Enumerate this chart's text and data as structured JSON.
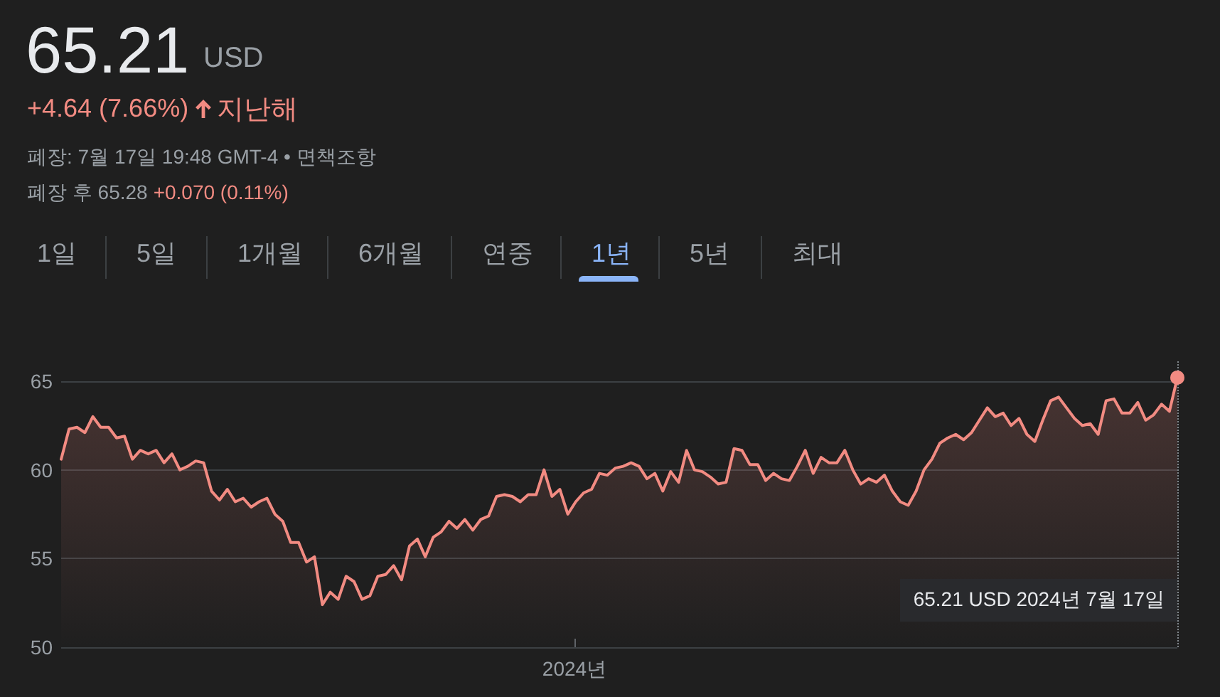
{
  "chart_data": {
    "type": "area",
    "title": "65.21",
    "subtitle": "USD",
    "categories": [
      null,
      null,
      null,
      null,
      null,
      null,
      null,
      null,
      null,
      null,
      null,
      null,
      null,
      null,
      null,
      null,
      null,
      null,
      null,
      null,
      null,
      null,
      null,
      null,
      null,
      null,
      null,
      null,
      null,
      null,
      null,
      null,
      null,
      null,
      null,
      null,
      null,
      null,
      null,
      null,
      null,
      null,
      null,
      null,
      null,
      null,
      null,
      null,
      null,
      null,
      null,
      null,
      null,
      null,
      null,
      null,
      null,
      null,
      null,
      null,
      null,
      null,
      null,
      null,
      null,
      null,
      null,
      null,
      null,
      null,
      null,
      null,
      null,
      null,
      null,
      null,
      null,
      null,
      null,
      null,
      null,
      null,
      null,
      null,
      null,
      null,
      null,
      null,
      null,
      null,
      null,
      null,
      null,
      null,
      null,
      null,
      null,
      null,
      null,
      null,
      null,
      null,
      null,
      null,
      null,
      null,
      null,
      null,
      null,
      null,
      null,
      null,
      null,
      null,
      null,
      null,
      null,
      null,
      null,
      null,
      null,
      null,
      null,
      null,
      null,
      null,
      null,
      null,
      null,
      null,
      null,
      null,
      null,
      null,
      null,
      null,
      null,
      null,
      null,
      null,
      null,
      null
    ],
    "values": [
      60.6,
      62.3,
      62.4,
      62.1,
      63.0,
      62.4,
      62.4,
      61.8,
      61.9,
      60.6,
      61.1,
      60.9,
      61.1,
      60.4,
      60.9,
      60.0,
      60.2,
      60.5,
      60.4,
      58.8,
      58.3,
      58.9,
      58.2,
      58.4,
      57.9,
      58.2,
      58.4,
      57.5,
      57.1,
      55.9,
      55.9,
      54.8,
      55.1,
      52.4,
      53.1,
      52.7,
      54.0,
      53.7,
      52.7,
      52.9,
      54.0,
      54.1,
      54.6,
      53.8,
      55.7,
      56.1,
      55.1,
      56.2,
      56.5,
      57.1,
      56.7,
      57.2,
      56.6,
      57.2,
      57.4,
      58.5,
      58.6,
      58.5,
      58.2,
      58.6,
      58.6,
      60.0,
      58.5,
      58.9,
      57.5,
      58.2,
      58.7,
      58.9,
      59.8,
      59.7,
      60.1,
      60.2,
      60.4,
      60.2,
      59.5,
      59.8,
      58.8,
      59.9,
      59.3,
      61.1,
      60.0,
      59.9,
      59.6,
      59.2,
      59.3,
      61.2,
      61.1,
      60.3,
      60.3,
      59.4,
      59.8,
      59.5,
      59.4,
      60.2,
      61.1,
      59.8,
      60.7,
      60.4,
      60.4,
      61.1,
      60.0,
      59.2,
      59.5,
      59.3,
      59.7,
      58.8,
      58.2,
      58.0,
      58.8,
      60.0,
      60.6,
      61.5,
      61.8,
      62.0,
      61.7,
      62.1,
      62.8,
      63.5,
      63.0,
      63.2,
      62.5,
      62.9,
      62.0,
      61.6,
      62.8,
      63.9,
      64.1,
      63.5,
      62.9,
      62.5,
      62.6,
      62.0,
      63.9,
      64.0,
      63.2,
      63.2,
      63.8,
      62.8,
      63.1,
      63.7,
      63.3,
      65.2
    ],
    "color": "#f28b82",
    "ylim": [
      50,
      66.2
    ],
    "yticks": [
      50,
      55,
      60,
      65
    ],
    "grid": "y",
    "annotations": [
      "+4.64 (7.66%)",
      "지난해",
      "폐장: 7월 17일 19:48 GMT-4 • 면책조항",
      "폐장 후 65.28",
      "+0.070 (0.11%)",
      "1일",
      "5일",
      "1개월",
      "6개월",
      "연중",
      "1년",
      "5년",
      "최대",
      "2024년",
      "65.21 USD  2024년 7월 17일"
    ]
  }
}
